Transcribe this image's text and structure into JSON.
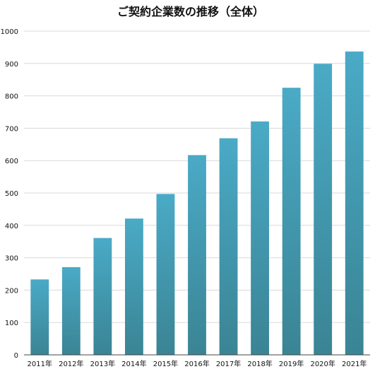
{
  "chart_data": {
    "type": "bar",
    "title": "ご契約企業数の推移（全体）",
    "xlabel": "",
    "ylabel": "",
    "categories": [
      "2011年",
      "2012年",
      "2013年",
      "2014年",
      "2015年",
      "2016年",
      "2017年",
      "2018年",
      "2019年",
      "2020年",
      "2021年"
    ],
    "values": [
      233,
      271,
      361,
      421,
      497,
      617,
      669,
      721,
      825,
      899,
      937
    ],
    "ylim": [
      0,
      1000
    ],
    "yticks": [
      "0",
      "100",
      "200",
      "300",
      "400",
      "500",
      "600",
      "700",
      "800",
      "900",
      "1000"
    ],
    "grid": true,
    "legend": "none",
    "colors": {
      "bar_top": "#4aaac6",
      "bar_bottom": "#3a8494",
      "grid": "#d9d9d9",
      "axis": "#444444"
    }
  }
}
